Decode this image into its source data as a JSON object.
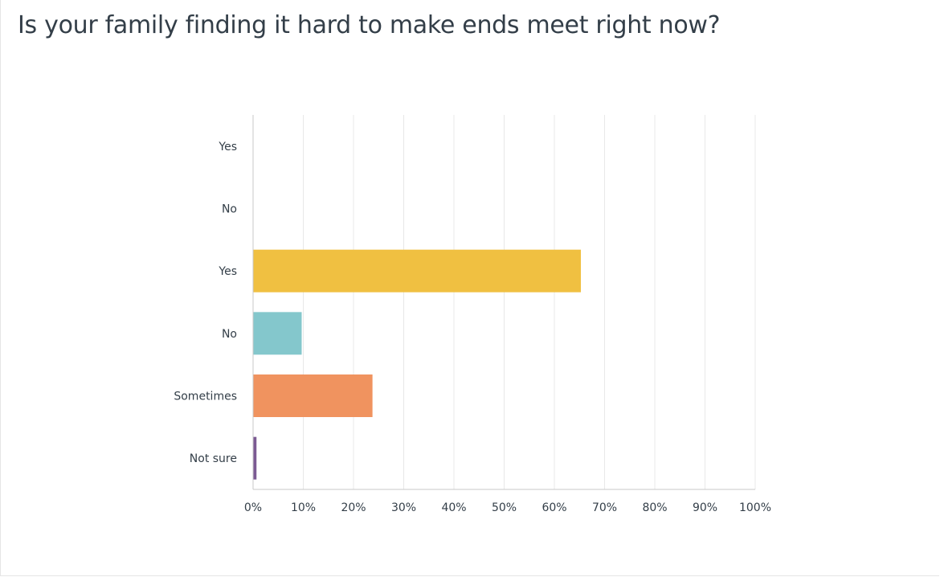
{
  "title": "Is your family finding it hard to make ends meet right now?",
  "chart_data": {
    "type": "bar",
    "orientation": "horizontal",
    "title": "Is your family finding it hard to make ends meet right now?",
    "categories": [
      "Yes",
      "No",
      "Yes",
      "No",
      "Sometimes",
      "Not sure"
    ],
    "values": [
      0,
      0,
      65.2,
      9.6,
      23.7,
      0.6
    ],
    "unit": "%",
    "xlim": [
      0,
      100
    ],
    "x_ticks": [
      "0%",
      "10%",
      "20%",
      "30%",
      "40%",
      "50%",
      "60%",
      "70%",
      "80%",
      "90%",
      "100%"
    ],
    "grid": "vertical",
    "colors": [
      "#6bc8cd",
      "#6bc8cd",
      "#f0c041",
      "#84c7cc",
      "#f0935f",
      "#7b5a93"
    ]
  }
}
